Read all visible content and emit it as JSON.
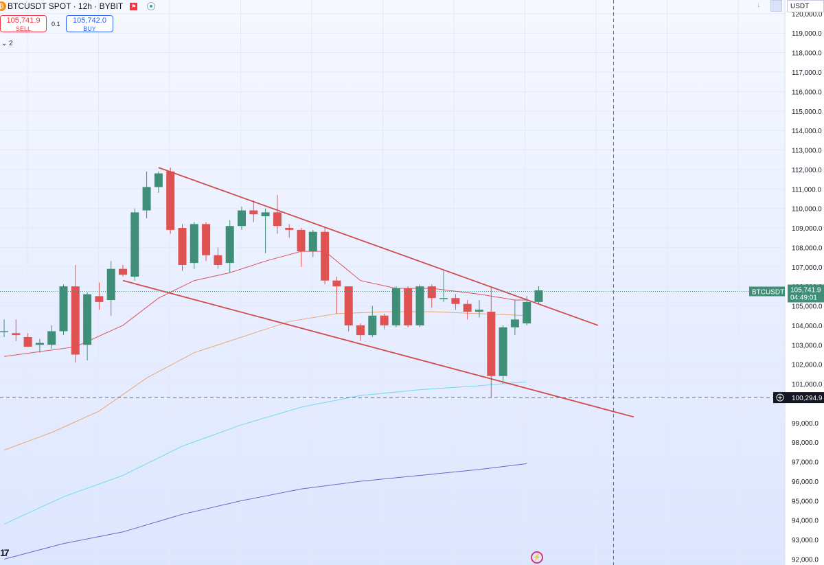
{
  "header": {
    "title": "BTCUSDT SPOT · 12h · BYBIT",
    "coin_icon": "bitcoin-icon",
    "flag_icon": "flag-icon",
    "status_icon": "market-status-icon"
  },
  "trade": {
    "sell_price": "105,741.9",
    "sell_label": "SELL",
    "quantity": "0.1",
    "buy_price": "105,742.0",
    "buy_label": "BUY"
  },
  "indicators": {
    "collapsed_count_label": "⌄ 2"
  },
  "price_scale": {
    "unit": "USDT",
    "symbol_tag": "BTCUSDT",
    "last_price": "105,741.9",
    "countdown": "04:49:01",
    "crosshair_price": "100,294.9"
  },
  "colors": {
    "up": "#3f8f78",
    "down": "#e05252",
    "trendline": "#cf4b4b",
    "ma20": "#d9545b",
    "ma50": "#e8a870",
    "ma100": "#6fdceb",
    "ma200": "#6a67c8",
    "background_top": "#f6f8ff",
    "background_bottom": "#dde6ff"
  },
  "chart_data": {
    "type": "candlestick",
    "title": "BTCUSDT SPOT · 12h · BYBIT",
    "ylim": [
      91700,
      120700
    ],
    "y_ticks": [
      92000,
      93000,
      94000,
      95000,
      96000,
      97000,
      98000,
      99000,
      100000,
      101000,
      102000,
      103000,
      104000,
      105000,
      106000,
      107000,
      108000,
      109000,
      110000,
      111000,
      112000,
      113000,
      114000,
      115000,
      116000,
      117000,
      118000,
      119000,
      120000
    ],
    "y_tick_labels": [
      "92,000.0",
      "93,000.0",
      "94,000.0",
      "95,000.0",
      "96,000.0",
      "97,000.0",
      "98,000.0",
      "99,000.0",
      "",
      "101,000.0",
      "102,000.0",
      "103,000.0",
      "104,000.0",
      "105,000.0",
      "106,000.0",
      "107,000.0",
      "108,000.0",
      "109,000.0",
      "110,000.0",
      "111,000.0",
      "112,000.0",
      "113,000.0",
      "114,000.0",
      "115,000.0",
      "116,000.0",
      "117,000.0",
      "118,000.0",
      "119,000.0",
      "120,000.0"
    ],
    "candles": [
      {
        "o": 103700,
        "h": 104300,
        "l": 103400,
        "c": 103700
      },
      {
        "o": 103600,
        "h": 104300,
        "l": 103200,
        "c": 103500
      },
      {
        "o": 103400,
        "h": 103600,
        "l": 102900,
        "c": 102900
      },
      {
        "o": 103000,
        "h": 103300,
        "l": 102600,
        "c": 103100
      },
      {
        "o": 103000,
        "h": 104000,
        "l": 102800,
        "c": 103700
      },
      {
        "o": 103700,
        "h": 106100,
        "l": 103500,
        "c": 106000
      },
      {
        "o": 106000,
        "h": 107100,
        "l": 102100,
        "c": 102500
      },
      {
        "o": 103000,
        "h": 105700,
        "l": 102200,
        "c": 105600
      },
      {
        "o": 105500,
        "h": 106200,
        "l": 104800,
        "c": 105200
      },
      {
        "o": 105300,
        "h": 107300,
        "l": 104500,
        "c": 106900
      },
      {
        "o": 106900,
        "h": 107100,
        "l": 106500,
        "c": 106600
      },
      {
        "o": 106500,
        "h": 110000,
        "l": 106300,
        "c": 109800
      },
      {
        "o": 109900,
        "h": 111900,
        "l": 109500,
        "c": 111100
      },
      {
        "o": 111100,
        "h": 111900,
        "l": 110800,
        "c": 111800
      },
      {
        "o": 111900,
        "h": 112100,
        "l": 108700,
        "c": 108900
      },
      {
        "o": 109000,
        "h": 109200,
        "l": 106800,
        "c": 107100
      },
      {
        "o": 107200,
        "h": 109300,
        "l": 106900,
        "c": 109200
      },
      {
        "o": 109200,
        "h": 109300,
        "l": 107300,
        "c": 107600
      },
      {
        "o": 107600,
        "h": 108000,
        "l": 106900,
        "c": 107100
      },
      {
        "o": 107200,
        "h": 109400,
        "l": 106700,
        "c": 109100
      },
      {
        "o": 109100,
        "h": 110100,
        "l": 108900,
        "c": 109900
      },
      {
        "o": 109900,
        "h": 110400,
        "l": 109300,
        "c": 109700
      },
      {
        "o": 109600,
        "h": 110000,
        "l": 107700,
        "c": 109800
      },
      {
        "o": 109800,
        "h": 110700,
        "l": 108700,
        "c": 109100
      },
      {
        "o": 109000,
        "h": 109200,
        "l": 108500,
        "c": 108900
      },
      {
        "o": 108900,
        "h": 109000,
        "l": 107000,
        "c": 107800
      },
      {
        "o": 107800,
        "h": 108900,
        "l": 107500,
        "c": 108800
      },
      {
        "o": 108800,
        "h": 109000,
        "l": 106100,
        "c": 106300
      },
      {
        "o": 106300,
        "h": 106500,
        "l": 104600,
        "c": 106000
      },
      {
        "o": 106000,
        "h": 106000,
        "l": 103700,
        "c": 104000
      },
      {
        "o": 104000,
        "h": 104100,
        "l": 103200,
        "c": 103500
      },
      {
        "o": 103500,
        "h": 105000,
        "l": 103400,
        "c": 104500
      },
      {
        "o": 104500,
        "h": 104600,
        "l": 103800,
        "c": 104000
      },
      {
        "o": 104000,
        "h": 106000,
        "l": 103900,
        "c": 105900
      },
      {
        "o": 105900,
        "h": 106000,
        "l": 103900,
        "c": 104000
      },
      {
        "o": 104000,
        "h": 106100,
        "l": 103900,
        "c": 106000
      },
      {
        "o": 106000,
        "h": 106100,
        "l": 104900,
        "c": 105400
      },
      {
        "o": 105400,
        "h": 106800,
        "l": 105200,
        "c": 105400
      },
      {
        "o": 105400,
        "h": 105600,
        "l": 104800,
        "c": 105100
      },
      {
        "o": 105100,
        "h": 105300,
        "l": 104300,
        "c": 104700
      },
      {
        "o": 104700,
        "h": 105300,
        "l": 104400,
        "c": 104800
      },
      {
        "o": 104700,
        "h": 106000,
        "l": 100300,
        "c": 101400
      },
      {
        "o": 101400,
        "h": 104000,
        "l": 101000,
        "c": 103900
      },
      {
        "o": 103900,
        "h": 105300,
        "l": 103500,
        "c": 104300
      },
      {
        "o": 104100,
        "h": 105500,
        "l": 104000,
        "c": 105200
      },
      {
        "o": 105200,
        "h": 106000,
        "l": 105100,
        "c": 105800
      }
    ],
    "moving_averages": [
      {
        "color_key": "ma20",
        "points": [
          [
            0,
            102400
          ],
          [
            6,
            102900
          ],
          [
            10,
            104000
          ],
          [
            13,
            105400
          ],
          [
            16,
            106300
          ],
          [
            19,
            106700
          ],
          [
            22,
            107300
          ],
          [
            25,
            107800
          ],
          [
            27,
            107800
          ],
          [
            30,
            106300
          ],
          [
            33,
            105900
          ],
          [
            36,
            105900
          ],
          [
            40,
            105600
          ],
          [
            43,
            105300
          ],
          [
            44,
            105300
          ]
        ]
      },
      {
        "color_key": "ma50",
        "points": [
          [
            0,
            97600
          ],
          [
            4,
            98500
          ],
          [
            8,
            99600
          ],
          [
            12,
            101300
          ],
          [
            16,
            102600
          ],
          [
            20,
            103400
          ],
          [
            24,
            104200
          ],
          [
            28,
            104600
          ],
          [
            32,
            104700
          ],
          [
            36,
            104700
          ],
          [
            40,
            104600
          ],
          [
            44,
            104500
          ]
        ]
      },
      {
        "color_key": "ma100",
        "points": [
          [
            0,
            93800
          ],
          [
            5,
            95200
          ],
          [
            10,
            96300
          ],
          [
            15,
            97800
          ],
          [
            20,
            98900
          ],
          [
            25,
            99800
          ],
          [
            30,
            100400
          ],
          [
            35,
            100700
          ],
          [
            40,
            100900
          ],
          [
            44,
            101100
          ]
        ]
      },
      {
        "color_key": "ma200",
        "points": [
          [
            0,
            92000
          ],
          [
            5,
            92800
          ],
          [
            10,
            93400
          ],
          [
            15,
            94300
          ],
          [
            20,
            95000
          ],
          [
            25,
            95600
          ],
          [
            30,
            96000
          ],
          [
            35,
            96300
          ],
          [
            40,
            96600
          ],
          [
            44,
            96900
          ]
        ]
      }
    ],
    "trendlines": [
      {
        "from": [
          13,
          112100
        ],
        "to": [
          50,
          104000
        ]
      },
      {
        "from": [
          10,
          106300
        ],
        "to": [
          53,
          99300
        ]
      }
    ],
    "last_price": 105741.9,
    "crosshair": {
      "price": 100294.9,
      "candle_index": 51.3
    },
    "grid": true
  }
}
